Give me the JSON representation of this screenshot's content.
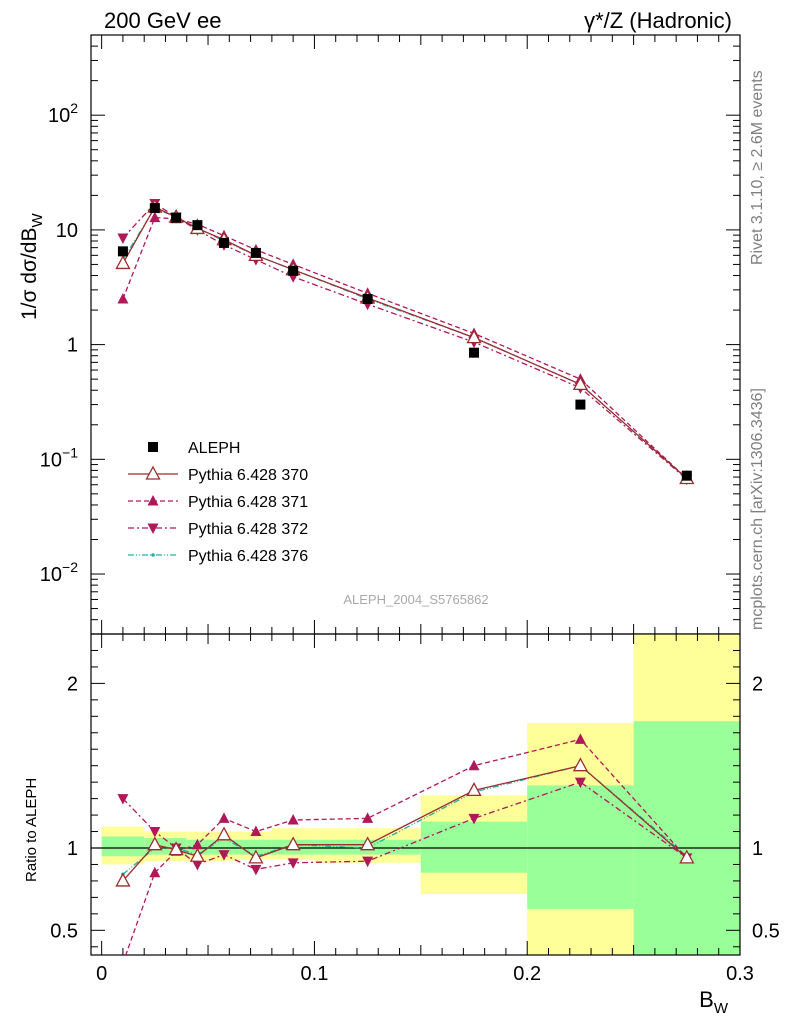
{
  "header": {
    "left_title": "200 GeV ee",
    "right_title": "γ*/Z (Hadronic)"
  },
  "side_labels": {
    "rivet": "Rivet 3.1.10, ≥ 2.6M events",
    "mcplots": "mcplots.cern.ch [arXiv:1306.3436]"
  },
  "watermark": "ALEPH_2004_S5765862",
  "colors": {
    "data": "#000000",
    "p370": "#9b2d2d",
    "p371": "#b0185a",
    "p372": "#b0185a",
    "p376": "#20b2aa",
    "band_inner": "#99ff99",
    "band_outer": "#ffff99"
  },
  "chart_data": [
    {
      "type": "scatter",
      "panel": "main",
      "xlabel": "B_W",
      "ylabel": "1/σ dσ/dB_W",
      "yscale": "log",
      "xlim": [
        -0.005,
        0.3
      ],
      "ylim": [
        0.003,
        500
      ],
      "xticks": [
        "0",
        "0.1",
        "0.2",
        "0.3"
      ],
      "yticks": [
        {
          "value": 0.01,
          "label": "10",
          "sup": "−2"
        },
        {
          "value": 0.1,
          "label": "10",
          "sup": "−1"
        },
        {
          "value": 1,
          "label": "1",
          "sup": ""
        },
        {
          "value": 10,
          "label": "10",
          "sup": ""
        },
        {
          "value": 100,
          "label": "10",
          "sup": "2"
        }
      ],
      "legend_position": "bottom-left",
      "x": [
        0.01,
        0.025,
        0.035,
        0.045,
        0.0575,
        0.0725,
        0.09,
        0.125,
        0.175,
        0.225,
        0.275
      ],
      "series": [
        {
          "name": "ALEPH",
          "style": "data",
          "values": [
            6.5,
            15.5,
            12.8,
            11.0,
            7.7,
            6.3,
            4.4,
            2.5,
            0.85,
            0.3,
            0.072
          ]
        },
        {
          "name": "Pythia 6.428 370",
          "style": "p370",
          "values": [
            5.1,
            15.8,
            12.9,
            10.3,
            8.2,
            6.0,
            4.5,
            2.55,
            1.15,
            0.45,
            0.068
          ]
        },
        {
          "name": "Pythia 6.428 371",
          "style": "p371",
          "values": [
            2.5,
            12.8,
            12.5,
            11.2,
            8.9,
            6.7,
            5.0,
            2.8,
            1.25,
            0.5,
            0.068
          ]
        },
        {
          "name": "Pythia 6.428 372",
          "style": "p372",
          "values": [
            8.5,
            17.0,
            12.9,
            10.0,
            7.4,
            5.5,
            3.9,
            2.25,
            1.05,
            0.42,
            0.067
          ]
        },
        {
          "name": "Pythia 6.428 376",
          "style": "p376",
          "values": [
            5.5,
            15.5,
            12.9,
            10.4,
            8.0,
            6.0,
            4.5,
            2.5,
            1.15,
            0.45,
            0.068
          ]
        }
      ]
    },
    {
      "type": "line",
      "panel": "ratio",
      "xlabel": "B_W",
      "ylabel": "Ratio to ALEPH",
      "xlim": [
        -0.005,
        0.3
      ],
      "ylim": [
        0.35,
        2.3
      ],
      "yticks": [
        {
          "value": 0.5,
          "label": "0.5"
        },
        {
          "value": 1,
          "label": "1"
        },
        {
          "value": 2,
          "label": "2"
        }
      ],
      "reference_line": 1,
      "x": [
        0.01,
        0.025,
        0.035,
        0.045,
        0.0575,
        0.0725,
        0.09,
        0.125,
        0.175,
        0.225,
        0.275
      ],
      "bands": [
        {
          "x0": 0.0,
          "x1": 0.02,
          "inner": [
            0.95,
            1.07
          ],
          "outer": [
            0.9,
            1.13
          ]
        },
        {
          "x0": 0.02,
          "x1": 0.03,
          "inner": [
            0.96,
            1.06
          ],
          "outer": [
            0.92,
            1.1
          ]
        },
        {
          "x0": 0.03,
          "x1": 0.04,
          "inner": [
            0.96,
            1.06
          ],
          "outer": [
            0.92,
            1.1
          ]
        },
        {
          "x0": 0.04,
          "x1": 0.05,
          "inner": [
            0.96,
            1.05
          ],
          "outer": [
            0.92,
            1.1
          ]
        },
        {
          "x0": 0.05,
          "x1": 0.065,
          "inner": [
            0.96,
            1.05
          ],
          "outer": [
            0.92,
            1.1
          ]
        },
        {
          "x0": 0.065,
          "x1": 0.08,
          "inner": [
            0.96,
            1.05
          ],
          "outer": [
            0.93,
            1.1
          ]
        },
        {
          "x0": 0.08,
          "x1": 0.1,
          "inner": [
            0.96,
            1.05
          ],
          "outer": [
            0.93,
            1.12
          ]
        },
        {
          "x0": 0.1,
          "x1": 0.15,
          "inner": [
            0.96,
            1.05
          ],
          "outer": [
            0.91,
            1.12
          ]
        },
        {
          "x0": 0.15,
          "x1": 0.2,
          "inner": [
            0.85,
            1.16
          ],
          "outer": [
            0.72,
            1.32
          ]
        },
        {
          "x0": 0.2,
          "x1": 0.25,
          "inner": [
            0.63,
            1.38
          ],
          "outer": [
            0.35,
            1.76
          ]
        },
        {
          "x0": 0.25,
          "x1": 0.3,
          "inner": [
            0.35,
            1.77
          ],
          "outer": [
            0.35,
            2.3
          ]
        }
      ],
      "series": [
        {
          "name": "Pythia 6.428 370",
          "style": "p370",
          "values": [
            0.8,
            1.02,
            0.99,
            0.95,
            1.08,
            0.94,
            1.02,
            1.02,
            1.35,
            1.5,
            0.94
          ]
        },
        {
          "name": "Pythia 6.428 371",
          "style": "p371",
          "values": [
            0.3,
            0.85,
            0.98,
            1.02,
            1.18,
            1.1,
            1.17,
            1.18,
            1.5,
            1.66,
            0.94
          ]
        },
        {
          "name": "Pythia 6.428 372",
          "style": "p372",
          "values": [
            1.3,
            1.1,
            1.0,
            0.9,
            0.96,
            0.87,
            0.91,
            0.92,
            1.18,
            1.4,
            0.94
          ]
        },
        {
          "name": "Pythia 6.428 376",
          "style": "p376",
          "values": [
            0.84,
            1.0,
            1.0,
            0.96,
            1.06,
            0.95,
            1.02,
            1.0,
            1.34,
            1.5,
            0.95
          ]
        }
      ]
    }
  ]
}
